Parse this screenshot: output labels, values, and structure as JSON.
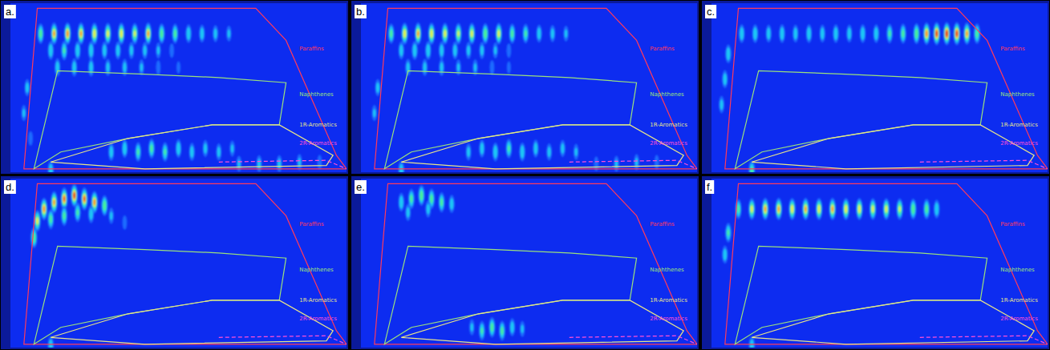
{
  "chart_data": [
    {
      "type": "heatmap",
      "title": "a.",
      "tick_labels": false,
      "grid": false,
      "xlim": [
        0,
        100
      ],
      "ylim": [
        0,
        100
      ],
      "peaks": {
        "x": [
          9,
          13,
          17,
          21,
          25,
          29,
          33,
          37,
          41,
          45,
          49,
          53,
          57,
          61,
          65,
          12,
          16,
          20,
          24,
          28,
          32,
          36,
          40,
          44,
          48,
          14,
          19,
          24,
          29,
          34,
          39,
          44,
          50,
          5,
          4,
          6,
          30,
          34,
          38,
          42,
          46,
          50,
          54,
          58,
          62,
          66,
          68,
          74,
          80,
          86,
          92,
          12
        ],
        "y": [
          82,
          82,
          82,
          82,
          82,
          82,
          82,
          82,
          82,
          82,
          82,
          82,
          82,
          82,
          82,
          72,
          72,
          72,
          72,
          72,
          72,
          72,
          72,
          72,
          72,
          62,
          62,
          62,
          62,
          62,
          62,
          62,
          62,
          50,
          35,
          20,
          12,
          14,
          12,
          14,
          12,
          14,
          12,
          14,
          12,
          14,
          5,
          5,
          5,
          6,
          6,
          1
        ],
        "intensity": [
          0.55,
          0.8,
          0.85,
          0.8,
          0.75,
          0.7,
          0.75,
          0.65,
          0.8,
          0.55,
          0.5,
          0.4,
          0.35,
          0.3,
          0.25,
          0.4,
          0.45,
          0.4,
          0.4,
          0.35,
          0.35,
          0.3,
          0.3,
          0.25,
          0.2,
          0.35,
          0.35,
          0.35,
          0.3,
          0.3,
          0.25,
          0.2,
          0.15,
          0.3,
          0.25,
          0.2,
          0.35,
          0.4,
          0.45,
          0.5,
          0.45,
          0.4,
          0.35,
          0.3,
          0.3,
          0.25,
          0.25,
          0.3,
          0.3,
          0.25,
          0.2,
          0.4
        ]
      }
    },
    {
      "type": "heatmap",
      "title": "b.",
      "tick_labels": false,
      "grid": false,
      "xlim": [
        0,
        100
      ],
      "ylim": [
        0,
        100
      ],
      "peaks": {
        "x": [
          9,
          13,
          17,
          21,
          25,
          29,
          33,
          37,
          41,
          45,
          49,
          53,
          57,
          61,
          12,
          16,
          20,
          24,
          28,
          32,
          36,
          40,
          44,
          14,
          19,
          24,
          29,
          34,
          39,
          44,
          5,
          4,
          32,
          36,
          40,
          44,
          48,
          52,
          56,
          60,
          64,
          70,
          76,
          82,
          88,
          12
        ],
        "y": [
          82,
          82,
          82,
          82,
          82,
          82,
          82,
          82,
          82,
          82,
          82,
          82,
          82,
          82,
          72,
          72,
          72,
          72,
          72,
          72,
          72,
          72,
          72,
          62,
          62,
          62,
          62,
          62,
          62,
          62,
          50,
          35,
          12,
          14,
          12,
          14,
          12,
          14,
          12,
          14,
          12,
          5,
          5,
          6,
          6,
          1
        ],
        "intensity": [
          0.5,
          0.75,
          0.8,
          0.75,
          0.7,
          0.65,
          0.7,
          0.6,
          0.7,
          0.5,
          0.45,
          0.35,
          0.3,
          0.25,
          0.35,
          0.4,
          0.4,
          0.35,
          0.35,
          0.3,
          0.3,
          0.25,
          0.2,
          0.3,
          0.3,
          0.3,
          0.25,
          0.25,
          0.2,
          0.15,
          0.3,
          0.25,
          0.3,
          0.35,
          0.4,
          0.45,
          0.4,
          0.35,
          0.3,
          0.3,
          0.25,
          0.2,
          0.25,
          0.25,
          0.2,
          0.4
        ]
      }
    },
    {
      "type": "heatmap",
      "title": "c.",
      "tick_labels": false,
      "grid": false,
      "xlim": [
        0,
        100
      ],
      "ylim": [
        0,
        100
      ],
      "peaks": {
        "x": [
          9,
          13,
          17,
          21,
          25,
          29,
          33,
          37,
          41,
          45,
          49,
          53,
          57,
          61,
          64,
          67,
          70,
          73,
          76,
          79,
          5,
          4,
          3,
          12
        ],
        "y": [
          82,
          82,
          82,
          82,
          82,
          82,
          82,
          82,
          82,
          82,
          82,
          82,
          82,
          82,
          82,
          82,
          82,
          82,
          82,
          82,
          70,
          55,
          40,
          1
        ],
        "intensity": [
          0.4,
          0.4,
          0.35,
          0.4,
          0.35,
          0.4,
          0.35,
          0.4,
          0.35,
          0.4,
          0.4,
          0.45,
          0.5,
          0.6,
          0.85,
          0.95,
          1,
          0.95,
          0.8,
          0.55,
          0.4,
          0.35,
          0.3,
          0.5
        ]
      }
    },
    {
      "type": "heatmap",
      "title": "d.",
      "tick_labels": false,
      "grid": false,
      "xlim": [
        0,
        100
      ],
      "ylim": [
        0,
        100
      ],
      "peaks": {
        "x": [
          7,
          8,
          10,
          13,
          16,
          19,
          22,
          25,
          28,
          12,
          16,
          20,
          24,
          30,
          34,
          12
        ],
        "y": [
          65,
          75,
          82,
          86,
          88,
          90,
          88,
          86,
          84,
          76,
          78,
          80,
          79,
          78,
          74,
          1
        ],
        "intensity": [
          0.6,
          0.7,
          0.85,
          0.8,
          0.9,
          0.95,
          0.9,
          0.85,
          0.6,
          0.5,
          0.5,
          0.45,
          0.35,
          0.25,
          0.2,
          0.4
        ]
      }
    },
    {
      "type": "heatmap",
      "title": "e.",
      "tick_labels": false,
      "grid": false,
      "xlim": [
        0,
        100
      ],
      "ylim": [
        0,
        100
      ],
      "peaks": {
        "x": [
          12,
          15,
          18,
          21,
          24,
          27,
          14,
          20,
          36,
          39,
          42,
          45,
          33,
          48
        ],
        "y": [
          86,
          88,
          90,
          88,
          86,
          85,
          80,
          82,
          10,
          12,
          10,
          12,
          12,
          11
        ],
        "intensity": [
          0.4,
          0.5,
          0.6,
          0.55,
          0.5,
          0.35,
          0.3,
          0.3,
          0.45,
          0.55,
          0.5,
          0.35,
          0.25,
          0.25
        ]
      }
    },
    {
      "type": "heatmap",
      "title": "f.",
      "tick_labels": false,
      "grid": false,
      "xlim": [
        0,
        100
      ],
      "ylim": [
        0,
        100
      ],
      "peaks": {
        "x": [
          8,
          12,
          16,
          20,
          24,
          28,
          32,
          36,
          40,
          44,
          48,
          52,
          56,
          60,
          64,
          67,
          4,
          5,
          12
        ],
        "y": [
          82,
          82,
          82,
          82,
          82,
          82,
          82,
          82,
          82,
          82,
          82,
          82,
          82,
          82,
          82,
          82,
          55,
          68,
          1
        ],
        "intensity": [
          0.5,
          0.7,
          0.8,
          0.8,
          0.75,
          0.8,
          0.75,
          0.8,
          0.75,
          0.75,
          0.7,
          0.7,
          0.65,
          0.6,
          0.55,
          0.4,
          0.35,
          0.45,
          0.4
        ]
      }
    }
  ],
  "regions": [
    {
      "name": "Paraffins",
      "color": "#ff3a5c",
      "line_style": "solid",
      "x": [
        4,
        8,
        73,
        82,
        97,
        100
      ],
      "y": [
        2,
        97,
        97,
        78,
        10,
        2
      ]
    },
    {
      "name": "Naphthenes",
      "color": "#9be07c",
      "line_style": "solid",
      "x": [
        7,
        14,
        40,
        62,
        82,
        80,
        60,
        35,
        15
      ],
      "y": [
        2,
        60,
        58,
        56,
        53,
        28,
        28,
        20,
        12
      ]
    },
    {
      "name": "1R-Aromatics",
      "color": "#e8e48a",
      "line_style": "solid",
      "x": [
        12,
        35,
        60,
        80,
        96,
        94,
        40
      ],
      "y": [
        6,
        20,
        28,
        28,
        10,
        4,
        2
      ]
    },
    {
      "name": "2R-Aromatics",
      "color": "#ff4fd8",
      "line_style": "dashed",
      "x": [
        62,
        94,
        100
      ],
      "y": [
        6,
        7,
        2
      ]
    }
  ]
}
